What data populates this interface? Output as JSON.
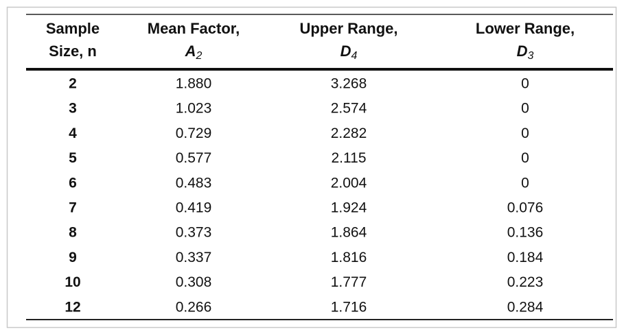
{
  "table": {
    "header": [
      {
        "line1": "Sample",
        "line2": "Size, n"
      },
      {
        "line1": "Mean Factor,",
        "symbol": "A",
        "subscript": "2"
      },
      {
        "line1": "Upper Range,",
        "symbol": "D",
        "subscript": "4"
      },
      {
        "line1": "Lower Range,",
        "symbol": "D",
        "subscript": "3"
      }
    ],
    "rows": [
      [
        "2",
        "1.880",
        "3.268",
        "0"
      ],
      [
        "3",
        "1.023",
        "2.574",
        "0"
      ],
      [
        "4",
        "0.729",
        "2.282",
        "0"
      ],
      [
        "5",
        "0.577",
        "2.115",
        "0"
      ],
      [
        "6",
        "0.483",
        "2.004",
        "0"
      ],
      [
        "7",
        "0.419",
        "1.924",
        "0.076"
      ],
      [
        "8",
        "0.373",
        "1.864",
        "0.136"
      ],
      [
        "9",
        "0.337",
        "1.816",
        "0.184"
      ],
      [
        "10",
        "0.308",
        "1.777",
        "0.223"
      ],
      [
        "12",
        "0.266",
        "1.716",
        "0.284"
      ]
    ]
  }
}
